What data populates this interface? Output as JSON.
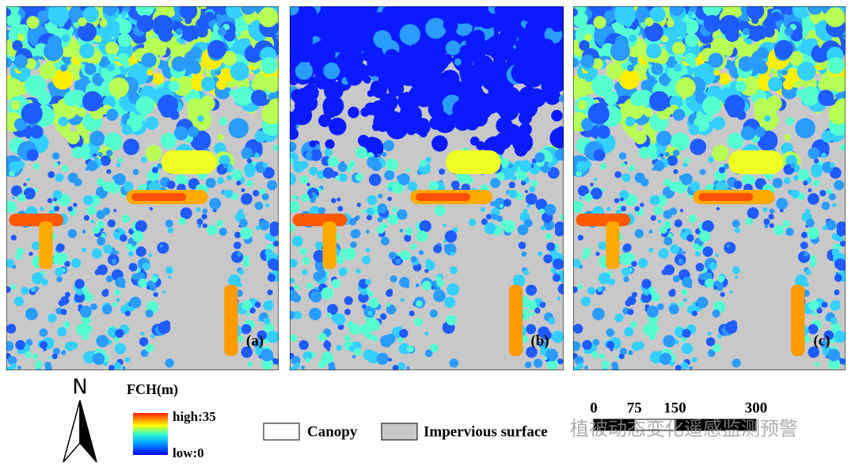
{
  "panels": [
    {
      "label": "(a)"
    },
    {
      "label": "(b)"
    },
    {
      "label": "(c)"
    }
  ],
  "north": "N",
  "legend": {
    "title": "FCH(m)",
    "high": "high:35",
    "low": "low:0",
    "classes": [
      {
        "label": "Canopy"
      },
      {
        "label": "Impervious surface"
      }
    ]
  },
  "scale_bar": {
    "ticks": [
      0,
      75,
      150,
      300
    ]
  },
  "watermark": "植被动态变化遥感监测预警"
}
